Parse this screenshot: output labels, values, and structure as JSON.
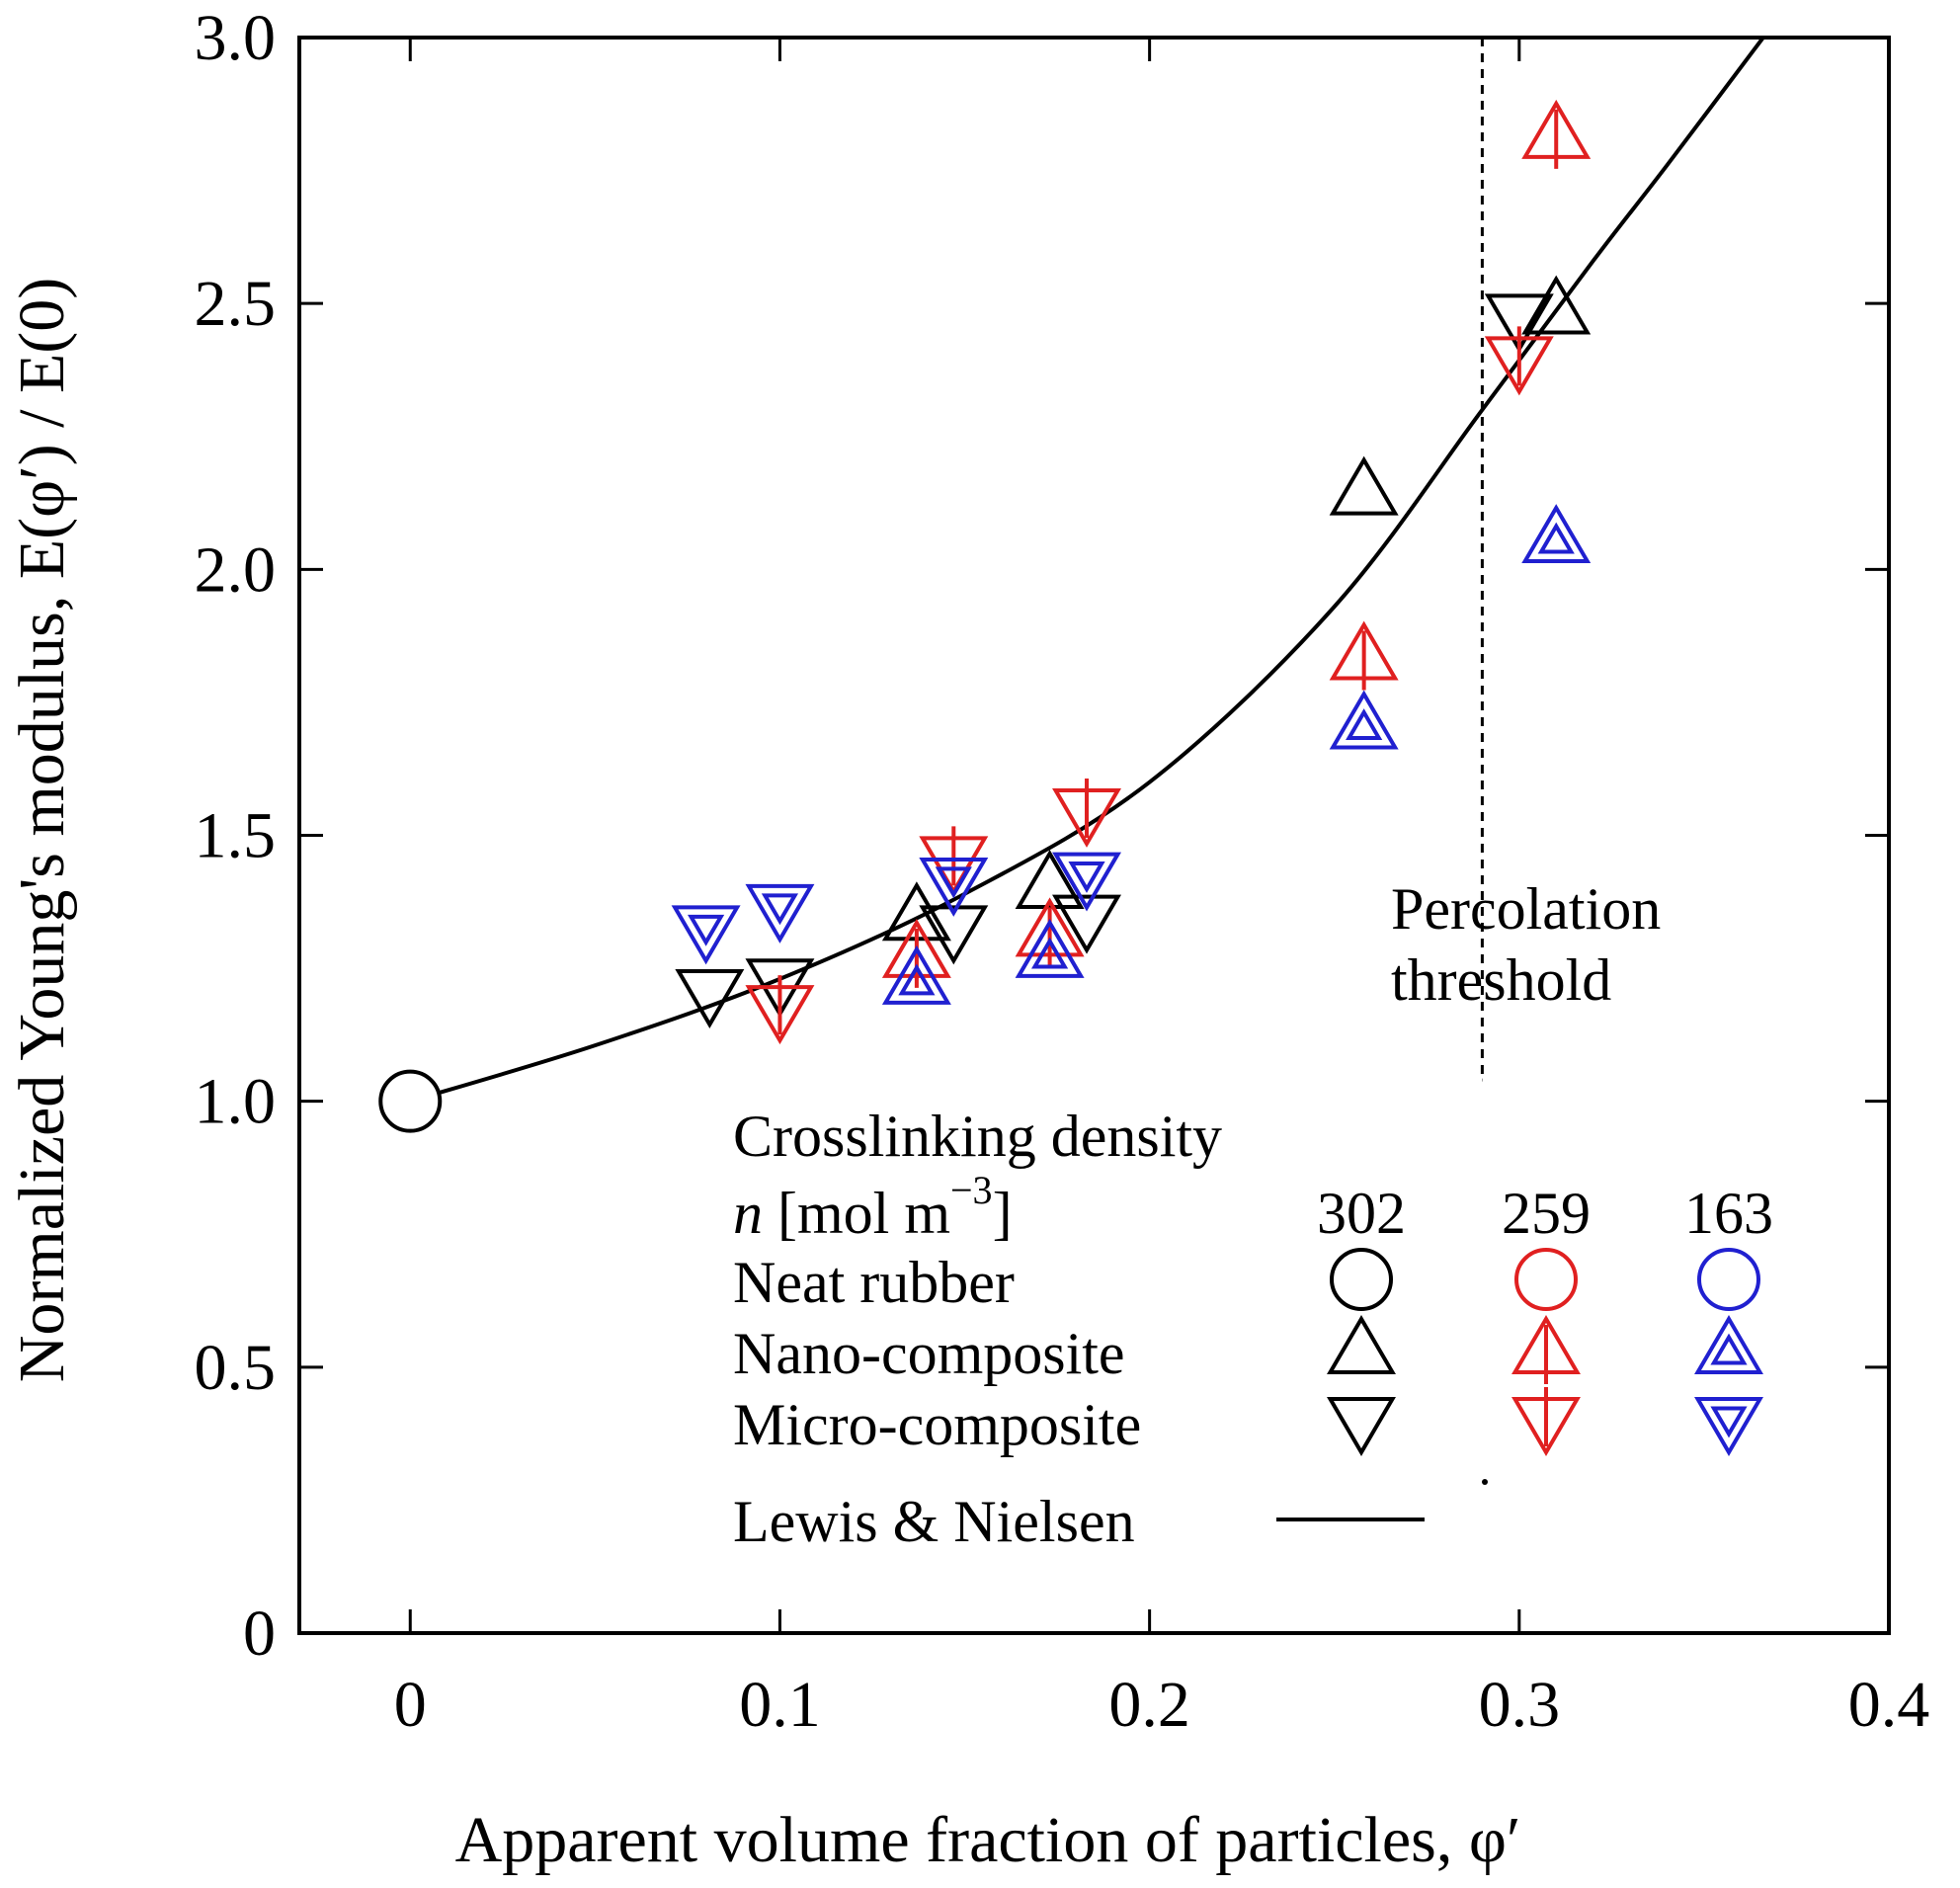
{
  "chart_data": {
    "type": "scatter",
    "xlabel": "Apparent volume fraction of particles, φ′",
    "ylabel": "Normalized Young's modulus, E(φ′) / E(0)",
    "xlim": [
      -0.03,
      0.4
    ],
    "ylim": [
      0,
      3.0
    ],
    "xticks": [
      "0",
      "0.1",
      "0.2",
      "0.3",
      "0.4"
    ],
    "xtick_values": [
      0,
      0.1,
      0.2,
      0.3,
      0.4
    ],
    "yticks": [
      "0",
      "0.5",
      "1.0",
      "1.5",
      "2.0",
      "2.5",
      "3.0"
    ],
    "ytick_values": [
      0,
      0.5,
      1.0,
      1.5,
      2.0,
      2.5,
      3.0
    ],
    "colors": {
      "302": "#000000",
      "259": "#e02020",
      "163": "#2020d0"
    },
    "series": [
      {
        "name": "Neat rubber",
        "n": "302",
        "marker": "circle",
        "points": [
          [
            0.0,
            1.0
          ]
        ]
      },
      {
        "name": "Nano-composite",
        "n": "302",
        "marker": "triangle-up",
        "points": [
          [
            0.137,
            1.35
          ],
          [
            0.173,
            1.41
          ],
          [
            0.258,
            2.15
          ],
          [
            0.31,
            2.49
          ]
        ]
      },
      {
        "name": "Nano-composite",
        "n": "259",
        "marker": "triangle-up",
        "points": [
          [
            0.137,
            1.28
          ],
          [
            0.173,
            1.32
          ],
          [
            0.258,
            1.84
          ],
          [
            0.31,
            2.82
          ]
        ]
      },
      {
        "name": "Nano-composite",
        "n": "163",
        "marker": "triangle-up",
        "points": [
          [
            0.137,
            1.23
          ],
          [
            0.173,
            1.28
          ],
          [
            0.258,
            1.71
          ],
          [
            0.31,
            2.06
          ]
        ]
      },
      {
        "name": "Micro-composite",
        "n": "302",
        "marker": "triangle-down",
        "points": [
          [
            0.081,
            1.2
          ],
          [
            0.1,
            1.22
          ],
          [
            0.147,
            1.32
          ],
          [
            0.183,
            1.34
          ],
          [
            0.3,
            2.47
          ]
        ]
      },
      {
        "name": "Micro-composite",
        "n": "259",
        "marker": "triangle-down",
        "points": [
          [
            0.1,
            1.17
          ],
          [
            0.147,
            1.45
          ],
          [
            0.183,
            1.54
          ],
          [
            0.3,
            2.39
          ]
        ]
      },
      {
        "name": "Micro-composite",
        "n": "163",
        "marker": "triangle-down",
        "points": [
          [
            0.08,
            1.32
          ],
          [
            0.1,
            1.36
          ],
          [
            0.147,
            1.41
          ],
          [
            0.183,
            1.42
          ]
        ]
      }
    ],
    "fit_curve": {
      "name": "Lewis & Nielsen",
      "points": [
        [
          0,
          1.0
        ],
        [
          0.05,
          1.105
        ],
        [
          0.1,
          1.23
        ],
        [
          0.15,
          1.39
        ],
        [
          0.2,
          1.6
        ],
        [
          0.25,
          1.93
        ],
        [
          0.29,
          2.3
        ],
        [
          0.32,
          2.58
        ],
        [
          0.34,
          2.76
        ],
        [
          0.366,
          3.0
        ]
      ]
    },
    "threshold": {
      "x": 0.29,
      "label_line1": "Percolation",
      "label_line2": "threshold"
    },
    "legend": {
      "placement": "bottom-right",
      "title": "Crosslinking density",
      "n_label_italic": "n",
      "n_label_rest": " [mol m",
      "n_label_sup": "−3",
      "n_label_end": "]",
      "columns": [
        "302",
        "259",
        "163"
      ],
      "rows": [
        "Neat rubber",
        "Nano-composite",
        "Micro-composite"
      ],
      "line_label": "Lewis & Nielsen"
    }
  }
}
